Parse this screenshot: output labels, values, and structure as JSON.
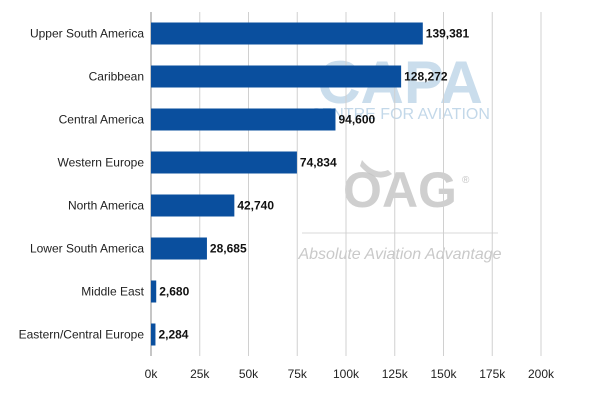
{
  "chart_data": {
    "type": "bar",
    "orientation": "horizontal",
    "title": "",
    "xlabel": "",
    "ylabel": "",
    "categories": [
      "Upper South America",
      "Caribbean",
      "Central America",
      "Western Europe",
      "North America",
      "Lower South America",
      "Middle East",
      "Eastern/Central Europe"
    ],
    "values": [
      139381,
      128272,
      94600,
      74834,
      42740,
      28685,
      2680,
      2284
    ],
    "value_labels": [
      "139,381",
      "128,272",
      "94,600",
      "74,834",
      "42,740",
      "28,685",
      "2,680",
      "2,284"
    ],
    "xlim": [
      0,
      200000
    ],
    "x_ticks": [
      0,
      25000,
      50000,
      75000,
      100000,
      125000,
      150000,
      175000,
      200000
    ],
    "x_tick_labels": [
      "0k",
      "25k",
      "50k",
      "75k",
      "100k",
      "125k",
      "150k",
      "175k",
      "200k"
    ],
    "grid": "vertical",
    "legend": "none",
    "bar_color": "#0a4f9e"
  },
  "watermark": {
    "capa_logo": "CAPA",
    "capa_sub": "CENTRE FOR AVIATION",
    "oag_logo": "OAG",
    "oag_tagline": "Absolute Aviation Advantage"
  }
}
